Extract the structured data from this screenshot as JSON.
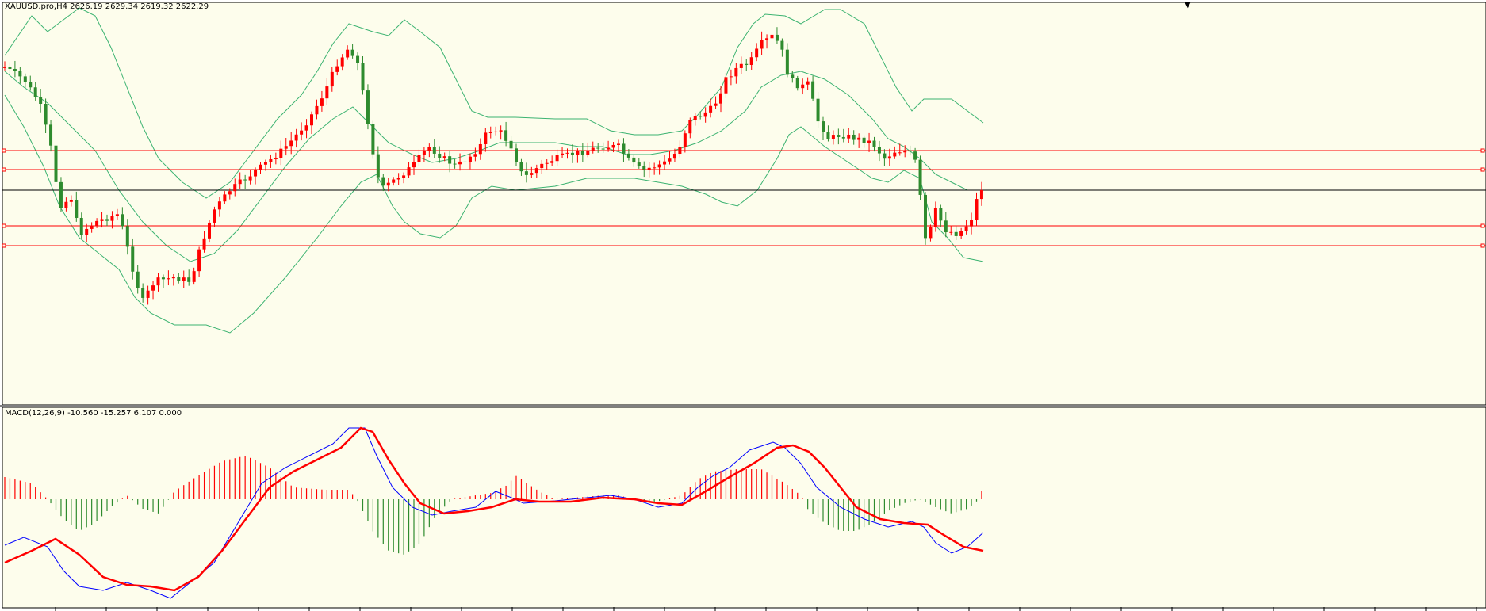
{
  "main_panel": {
    "symbol_label": "XAUUSD.pro,H4",
    "ohlc_label": "2626.19 2629.34 2619.32 2622.29",
    "background": "#fdfdec",
    "bull_color": "#ff0000",
    "bear_color": "#2e8b2e",
    "band_color": "#3cb371",
    "level_color": "#ff0000",
    "price_line_color": "#000000"
  },
  "macd_panel": {
    "label": "MACD(12,26,9) -10.560 -15.257 6.107 0.000",
    "background": "#fdfdec",
    "macd_color": "#0000ff",
    "signal_color": "#ff0000",
    "hist_pos_color": "#ff0000",
    "hist_neg_color": "#2e8b2e"
  },
  "top_marker": "▼"
}
